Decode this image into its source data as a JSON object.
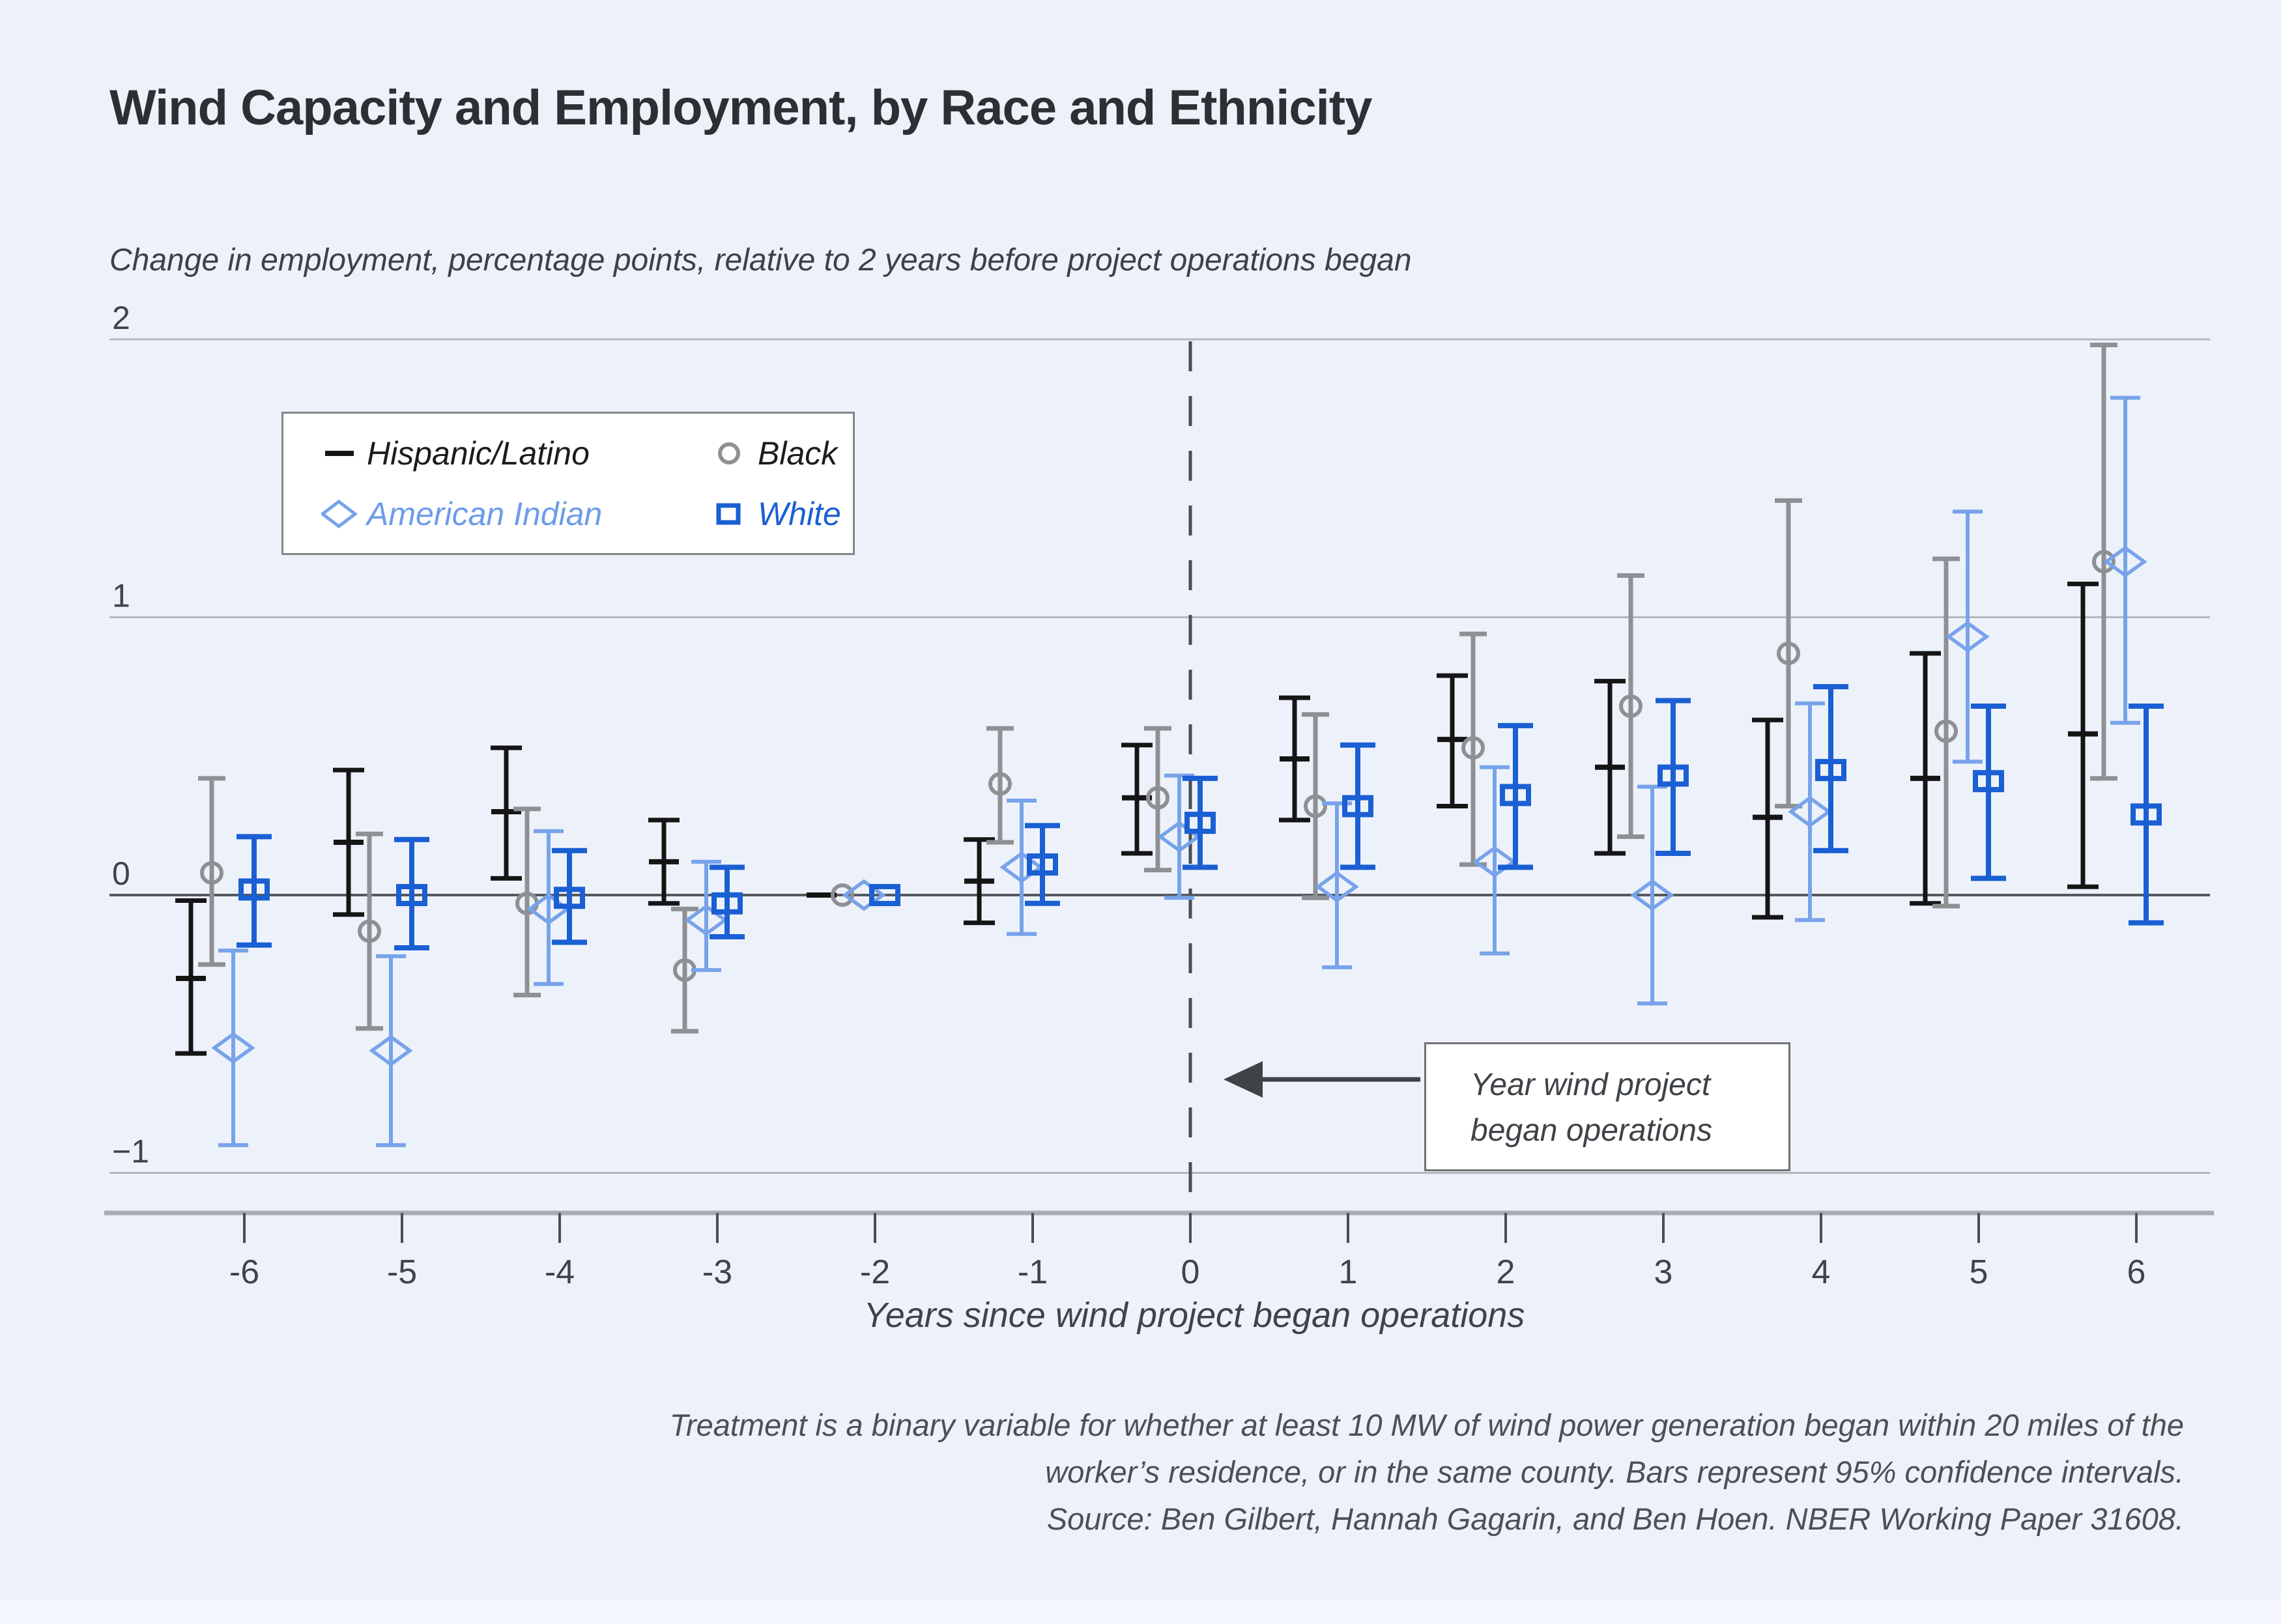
{
  "header": {
    "title": "Wind Capacity and Employment, by Race and Ethnicity"
  },
  "chart": {
    "subtitle": "Change in employment, percentage points, relative to 2 years before project operations began",
    "legend": [
      {
        "label": "Hispanic/Latino",
        "marker": "dash-marker-icon",
        "color": "#151515",
        "text_color": "#1c1c1e"
      },
      {
        "label": "Black",
        "marker": "circle-marker-icon",
        "color": "#8e9093",
        "text_color": "#1c1c1e"
      },
      {
        "label": "American Indian",
        "marker": "diamond-marker-icon",
        "color": "#78a3ea",
        "text_color": "#6d9ce9"
      },
      {
        "label": "White",
        "marker": "square-marker-icon",
        "color": "#1a5fd3",
        "text_color": "#1a5fd3"
      }
    ],
    "annotation": {
      "line1": "Year wind project",
      "line2": "began operations"
    },
    "colors": {
      "background": "#edf2fa",
      "gridline": "#b4b8bd",
      "zero_line": "#55595e",
      "axis_line": "#a9adb2",
      "dashed_event_line": "#4a4e54",
      "tick_label": "#3f4449"
    }
  },
  "chart_data": {
    "type": "scatter",
    "title": "Wind Capacity and Employment, by Race and Ethnicity",
    "xlabel": "Years since wind project began operations",
    "ylabel": "Change in employment, percentage points, relative to 2 years before project operations began",
    "x": [
      -6,
      -5,
      -4,
      -3,
      -2,
      -1,
      0,
      1,
      2,
      3,
      4,
      5,
      6
    ],
    "x_tick_labels": [
      "-6",
      "-5",
      "-4",
      "-3",
      "-2",
      "-1",
      "0",
      "1",
      "2",
      "3",
      "4",
      "5",
      "6"
    ],
    "y_ticks": [
      2,
      1,
      0,
      -1
    ],
    "y_tick_labels": [
      "2",
      "1",
      "0",
      "−1"
    ],
    "ylim": [
      -1.15,
      2.05
    ],
    "grid": true,
    "legend_position": "upper-left",
    "reference_year": -2,
    "event_line_x": 0,
    "error_bars": "95% confidence intervals",
    "series": [
      {
        "name": "Hispanic/Latino",
        "marker": "dash",
        "color": "#151515",
        "values": [
          -0.3,
          0.19,
          0.3,
          0.12,
          0.0,
          0.05,
          0.35,
          0.49,
          0.56,
          0.46,
          0.28,
          0.42,
          0.58
        ],
        "ci_low": [
          -0.57,
          -0.07,
          0.06,
          -0.03,
          0.0,
          -0.1,
          0.15,
          0.27,
          0.32,
          0.15,
          -0.08,
          -0.03,
          0.03
        ],
        "ci_high": [
          -0.02,
          0.45,
          0.53,
          0.27,
          0.0,
          0.2,
          0.54,
          0.71,
          0.79,
          0.77,
          0.63,
          0.87,
          1.12
        ]
      },
      {
        "name": "Black",
        "marker": "circle",
        "color": "#8e9093",
        "values": [
          0.08,
          -0.13,
          -0.03,
          -0.27,
          0.0,
          0.4,
          0.35,
          0.32,
          0.53,
          0.68,
          0.87,
          0.59,
          1.2
        ],
        "ci_low": [
          -0.25,
          -0.48,
          -0.36,
          -0.49,
          0.0,
          0.19,
          0.09,
          -0.01,
          0.11,
          0.21,
          0.32,
          -0.04,
          0.42
        ],
        "ci_high": [
          0.42,
          0.22,
          0.31,
          -0.05,
          0.0,
          0.6,
          0.6,
          0.65,
          0.94,
          1.15,
          1.42,
          1.21,
          1.98
        ]
      },
      {
        "name": "American Indian",
        "marker": "diamond",
        "color": "#78a3ea",
        "values": [
          -0.55,
          -0.56,
          -0.05,
          -0.09,
          0.0,
          0.1,
          0.21,
          0.03,
          0.12,
          0.0,
          0.3,
          0.93,
          1.2
        ],
        "ci_low": [
          -0.9,
          -0.9,
          -0.32,
          -0.27,
          0.0,
          -0.14,
          -0.01,
          -0.26,
          -0.21,
          -0.39,
          -0.09,
          0.48,
          0.62
        ],
        "ci_high": [
          -0.2,
          -0.22,
          0.23,
          0.12,
          0.0,
          0.34,
          0.43,
          0.33,
          0.46,
          0.39,
          0.69,
          1.38,
          1.79
        ]
      },
      {
        "name": "White",
        "marker": "square",
        "color": "#1a5fd3",
        "values": [
          0.02,
          0.0,
          -0.01,
          -0.03,
          0.0,
          0.11,
          0.26,
          0.32,
          0.36,
          0.43,
          0.45,
          0.41,
          0.29
        ],
        "ci_low": [
          -0.18,
          -0.19,
          -0.17,
          -0.15,
          0.0,
          -0.03,
          0.1,
          0.1,
          0.1,
          0.15,
          0.16,
          0.06,
          -0.1
        ],
        "ci_high": [
          0.21,
          0.2,
          0.16,
          0.1,
          0.0,
          0.25,
          0.42,
          0.54,
          0.61,
          0.7,
          0.75,
          0.68,
          0.68
        ]
      }
    ]
  },
  "footer": {
    "lines": [
      "Treatment is a binary variable for whether at least 10 MW of wind power generation began within 20 miles of the",
      "worker’s residence, or in the same county. Bars represent 95% confidence intervals.",
      "Source: Ben Gilbert, Hannah Gagarin, and Ben Hoen. NBER Working Paper 31608."
    ]
  }
}
